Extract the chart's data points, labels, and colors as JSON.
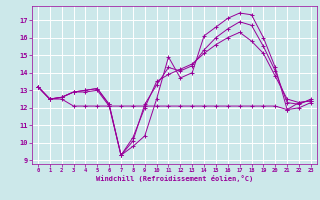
{
  "xlabel": "Windchill (Refroidissement éolien,°C)",
  "background_color": "#cce8ea",
  "grid_color": "#ffffff",
  "line_color": "#990099",
  "xlim": [
    -0.5,
    23.5
  ],
  "ylim": [
    8.8,
    17.8
  ],
  "yticks": [
    9,
    10,
    11,
    12,
    13,
    14,
    15,
    16,
    17
  ],
  "xticks": [
    0,
    1,
    2,
    3,
    4,
    5,
    6,
    7,
    8,
    9,
    10,
    11,
    12,
    13,
    14,
    15,
    16,
    17,
    18,
    19,
    20,
    21,
    22,
    23
  ],
  "series": [
    {
      "x": [
        0,
        1,
        2,
        3,
        4,
        5,
        6,
        7,
        8,
        9,
        10,
        11,
        12,
        13,
        14,
        15,
        16,
        17,
        18,
        19,
        20,
        21,
        22,
        23
      ],
      "y": [
        13.2,
        12.5,
        12.6,
        12.9,
        12.9,
        13.0,
        12.1,
        9.3,
        9.8,
        10.4,
        12.5,
        14.9,
        13.7,
        14.0,
        16.1,
        16.6,
        17.1,
        17.4,
        17.3,
        16.0,
        14.3,
        11.9,
        12.0,
        12.3
      ]
    },
    {
      "x": [
        0,
        1,
        2,
        3,
        4,
        5,
        6,
        7,
        8,
        9,
        10,
        11,
        12,
        13,
        14,
        15,
        16,
        17,
        18,
        19,
        20,
        21,
        22,
        23
      ],
      "y": [
        13.2,
        12.5,
        12.6,
        12.9,
        13.0,
        13.1,
        12.2,
        9.3,
        10.1,
        12.2,
        13.3,
        14.3,
        14.1,
        14.4,
        15.3,
        16.0,
        16.5,
        16.9,
        16.7,
        15.5,
        14.1,
        12.3,
        12.2,
        12.5
      ]
    },
    {
      "x": [
        0,
        1,
        2,
        3,
        4,
        5,
        6,
        7,
        8,
        9,
        10,
        11,
        12,
        13,
        14,
        15,
        16,
        17,
        18,
        19,
        20,
        21,
        22,
        23
      ],
      "y": [
        13.2,
        12.5,
        12.6,
        12.9,
        13.0,
        13.1,
        12.2,
        9.3,
        10.3,
        12.0,
        13.5,
        13.9,
        14.2,
        14.5,
        15.1,
        15.6,
        16.0,
        16.3,
        15.8,
        15.1,
        13.8,
        12.5,
        12.3,
        12.4
      ]
    },
    {
      "x": [
        0,
        1,
        2,
        3,
        4,
        5,
        6,
        7,
        8,
        9,
        10,
        11,
        12,
        13,
        14,
        15,
        16,
        17,
        18,
        19,
        20,
        21,
        22,
        23
      ],
      "y": [
        13.2,
        12.5,
        12.5,
        12.1,
        12.1,
        12.1,
        12.1,
        12.1,
        12.1,
        12.1,
        12.1,
        12.1,
        12.1,
        12.1,
        12.1,
        12.1,
        12.1,
        12.1,
        12.1,
        12.1,
        12.1,
        11.9,
        12.3,
        12.4
      ]
    }
  ]
}
